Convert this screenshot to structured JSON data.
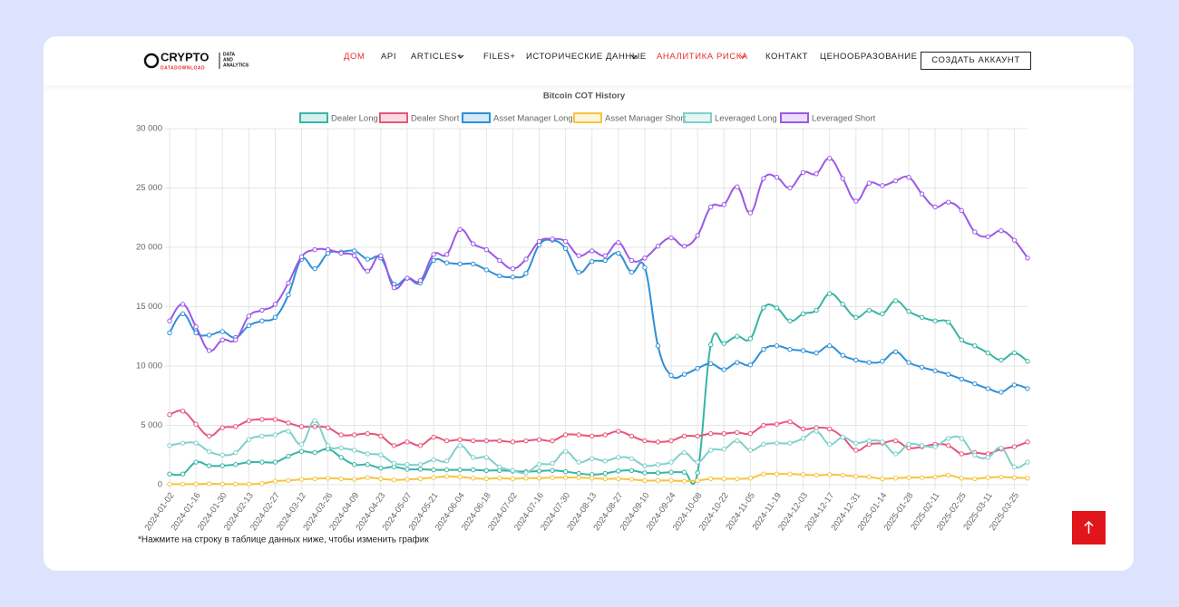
{
  "nav": {
    "logo": {
      "name": "CRYPTO",
      "sub": "DATADOWNLOAD",
      "tag": [
        "DATA",
        "AND",
        "ANALYTICS"
      ]
    },
    "items": [
      "ДОМ",
      "API",
      "ARTICLES+",
      "FILES+",
      "ИСТОРИЧЕСКИЕ ДАННЫЕ",
      "АНАЛИТИКА РИСКА",
      "КОНТАКТ",
      "ЦЕНООБРАЗОВАНИЕ"
    ],
    "button": "СОЗДАТЬ АККАУНТ"
  },
  "note": "*Нажмите на строку в таблице данных ниже, чтобы изменить график",
  "chart_data": {
    "type": "line",
    "title": "Bitcoin COT History",
    "categories": [
      "2024-01-02",
      null,
      "2024-01-16",
      null,
      "2024-01-30",
      null,
      "2024-02-13",
      null,
      "2024-02-27",
      null,
      "2024-03-12",
      null,
      "2024-03-26",
      null,
      "2024-04-09",
      null,
      "2024-04-23",
      null,
      "2024-05-07",
      null,
      "2024-05-21",
      null,
      "2024-06-04",
      null,
      "2024-06-18",
      null,
      "2024-07-02",
      null,
      "2024-07-16",
      null,
      "2024-07-30",
      null,
      "2024-08-13",
      null,
      "2024-08-27",
      null,
      "2024-09-10",
      null,
      "2024-09-24",
      null,
      "2024-10-08",
      null,
      "2024-10-22",
      null,
      "2024-11-05",
      null,
      "2024-11-19",
      null,
      "2024-12-03",
      null,
      "2024-12-17",
      null,
      "2024-12-31",
      null,
      "2025-01-14",
      null,
      "2025-01-28",
      null,
      "2025-02-11",
      null,
      "2025-02-25",
      null,
      "2025-03-11",
      null,
      "2025-03-25",
      null
    ],
    "ylim": [
      0,
      30000
    ],
    "yticks": [
      0,
      {
        "value": 5000,
        "label": "5 000"
      },
      {
        "value": 10000,
        "label": "10 000"
      },
      {
        "value": 15000,
        "label": "15 000"
      },
      {
        "value": 20000,
        "label": "20 000"
      },
      {
        "value": 25000,
        "label": "25 000"
      },
      {
        "value": 30000,
        "label": "30 000"
      }
    ],
    "grid": true,
    "series": [
      {
        "name": "Dealer Long",
        "color": "#36b5a5",
        "values": [
          900,
          900,
          1900,
          1600,
          1600,
          1700,
          1900,
          1900,
          1900,
          2400,
          2800,
          2700,
          3000,
          2300,
          1700,
          1700,
          1400,
          1500,
          1300,
          1300,
          1250,
          1250,
          1250,
          1250,
          1200,
          1200,
          1150,
          1100,
          1150,
          1200,
          1100,
          950,
          850,
          950,
          1150,
          1200,
          1000,
          1000,
          1050,
          1050,
          1000,
          11800,
          11900,
          12500,
          12300,
          14900,
          14900,
          13800,
          14400,
          14700,
          16100,
          15200,
          14100,
          14700,
          14400,
          15500,
          14600,
          14100,
          13800,
          13700,
          12200,
          11700,
          11100,
          10500,
          11100,
          10400
        ]
      },
      {
        "name": "Dealer Short",
        "color": "#e8557a",
        "values": [
          5900,
          6200,
          5100,
          4100,
          4800,
          4900,
          5400,
          5500,
          5500,
          5200,
          4900,
          4900,
          4800,
          4200,
          4200,
          4300,
          4100,
          3300,
          3600,
          3300,
          4000,
          3700,
          3800,
          3700,
          3700,
          3700,
          3600,
          3700,
          3800,
          3700,
          4200,
          4200,
          4100,
          4200,
          4500,
          4100,
          3700,
          3600,
          3700,
          4100,
          4100,
          4300,
          4300,
          4400,
          4300,
          5000,
          5100,
          5300,
          4700,
          4800,
          4700,
          4000,
          2900,
          3400,
          3500,
          3700,
          3100,
          3200,
          3400,
          3300,
          2600,
          2700,
          2600,
          3000,
          3200,
          3600
        ]
      },
      {
        "name": "Asset Manager Long",
        "color": "#2f8fd8",
        "values": [
          12800,
          14400,
          12800,
          12600,
          12900,
          12400,
          13400,
          13800,
          14100,
          16000,
          19000,
          18200,
          19500,
          19600,
          19700,
          19000,
          19100,
          16900,
          17400,
          17000,
          18900,
          18700,
          18600,
          18600,
          18100,
          17600,
          17500,
          17800,
          20200,
          20600,
          19900,
          17900,
          18800,
          18900,
          19500,
          17900,
          18300,
          11700,
          9200,
          9300,
          9800,
          10200,
          9700,
          10300,
          10100,
          11400,
          11700,
          11400,
          11300,
          11100,
          11700,
          10900,
          10500,
          10300,
          10400,
          11200,
          10300,
          9900,
          9600,
          9300,
          8900,
          8500,
          8100,
          7800,
          8400,
          8100
        ]
      },
      {
        "name": "Asset Manager Short",
        "color": "#f5c542",
        "values": [
          50,
          50,
          50,
          80,
          50,
          50,
          50,
          100,
          300,
          350,
          450,
          500,
          550,
          500,
          450,
          600,
          500,
          400,
          450,
          500,
          600,
          700,
          650,
          550,
          500,
          550,
          500,
          550,
          550,
          600,
          600,
          600,
          550,
          500,
          500,
          450,
          350,
          350,
          350,
          300,
          350,
          500,
          500,
          500,
          550,
          900,
          900,
          900,
          850,
          800,
          850,
          800,
          700,
          650,
          500,
          550,
          600,
          600,
          650,
          800,
          550,
          500,
          600,
          650,
          600,
          550
        ]
      },
      {
        "name": "Leveraged Long",
        "color": "#7fd0cc",
        "values": [
          3300,
          3500,
          3500,
          2800,
          2500,
          2700,
          3800,
          4100,
          4200,
          4500,
          3400,
          5400,
          3300,
          3100,
          2900,
          2600,
          2500,
          1800,
          1700,
          1700,
          2100,
          2000,
          3300,
          2300,
          2300,
          1500,
          1200,
          1000,
          1700,
          1800,
          2800,
          1900,
          2200,
          2000,
          2300,
          2200,
          1600,
          1700,
          1900,
          2700,
          1900,
          2900,
          3000,
          3700,
          2900,
          3400,
          3500,
          3500,
          3900,
          4500,
          3400,
          4000,
          3500,
          3700,
          3600,
          2600,
          3400,
          3300,
          3200,
          3900,
          3900,
          2500,
          2300,
          3100,
          1500,
          1900
        ]
      },
      {
        "name": "Leveraged Short",
        "color": "#9b59e6",
        "values": [
          13800,
          15200,
          13300,
          11300,
          12200,
          12200,
          14200,
          14700,
          15200,
          17000,
          19200,
          19800,
          19800,
          19500,
          19300,
          18000,
          19300,
          16600,
          17400,
          17200,
          19400,
          19400,
          21500,
          20300,
          19800,
          18900,
          18200,
          19000,
          20500,
          20700,
          20500,
          19300,
          19700,
          19300,
          20400,
          18900,
          19100,
          20100,
          20800,
          20100,
          21000,
          23400,
          23600,
          25100,
          22900,
          25800,
          25900,
          25000,
          26300,
          26200,
          27500,
          25800,
          23900,
          25400,
          25200,
          25600,
          25900,
          24500,
          23400,
          23800,
          23100,
          21300,
          20900,
          21400,
          20600,
          19100
        ]
      }
    ]
  }
}
